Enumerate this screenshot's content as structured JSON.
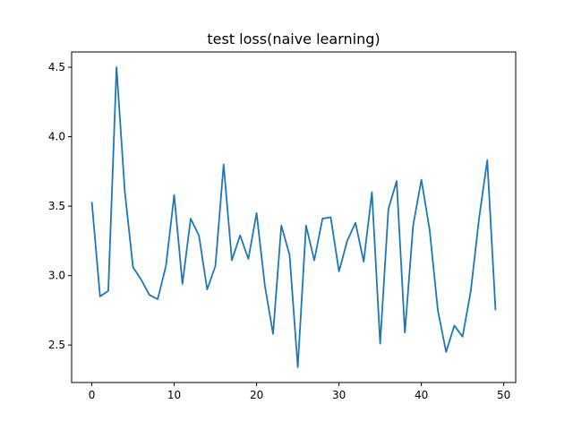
{
  "chart_data": {
    "type": "line",
    "title": "test loss(naive learning)",
    "xlabel": "",
    "ylabel": "",
    "xlim": [
      -2.45,
      51.45
    ],
    "ylim": [
      2.23,
      4.61
    ],
    "xticks": [
      0,
      10,
      20,
      30,
      40,
      50
    ],
    "yticks": [
      2.5,
      3.0,
      3.5,
      4.0,
      4.5
    ],
    "ytick_labels": [
      "2.5",
      "3.0",
      "3.5",
      "4.0",
      "4.5"
    ],
    "grid": false,
    "line_color": "#1f77b4",
    "series": [
      {
        "x": [
          0,
          1,
          2,
          3,
          4,
          5,
          6,
          7,
          8,
          9,
          10,
          11,
          12,
          13,
          14,
          15,
          16,
          17,
          18,
          19,
          20,
          21,
          22,
          23,
          24,
          25,
          26,
          27,
          28,
          29,
          30,
          31,
          32,
          33,
          34,
          35,
          36,
          37,
          38,
          39,
          40,
          41,
          42,
          43,
          44,
          45,
          46,
          47,
          48,
          49
        ],
        "values": [
          3.53,
          2.85,
          2.89,
          4.5,
          3.61,
          3.06,
          2.97,
          2.86,
          2.83,
          3.07,
          3.58,
          2.94,
          3.41,
          3.29,
          2.9,
          3.07,
          3.8,
          3.11,
          3.29,
          3.12,
          3.45,
          2.93,
          2.58,
          3.36,
          3.15,
          2.34,
          3.36,
          3.11,
          3.41,
          3.42,
          3.03,
          3.25,
          3.38,
          3.1,
          3.6,
          2.51,
          3.48,
          3.68,
          2.59,
          3.36,
          3.69,
          3.33,
          2.75,
          2.45,
          2.64,
          2.56,
          2.89,
          3.41,
          3.83,
          2.75
        ]
      }
    ]
  }
}
